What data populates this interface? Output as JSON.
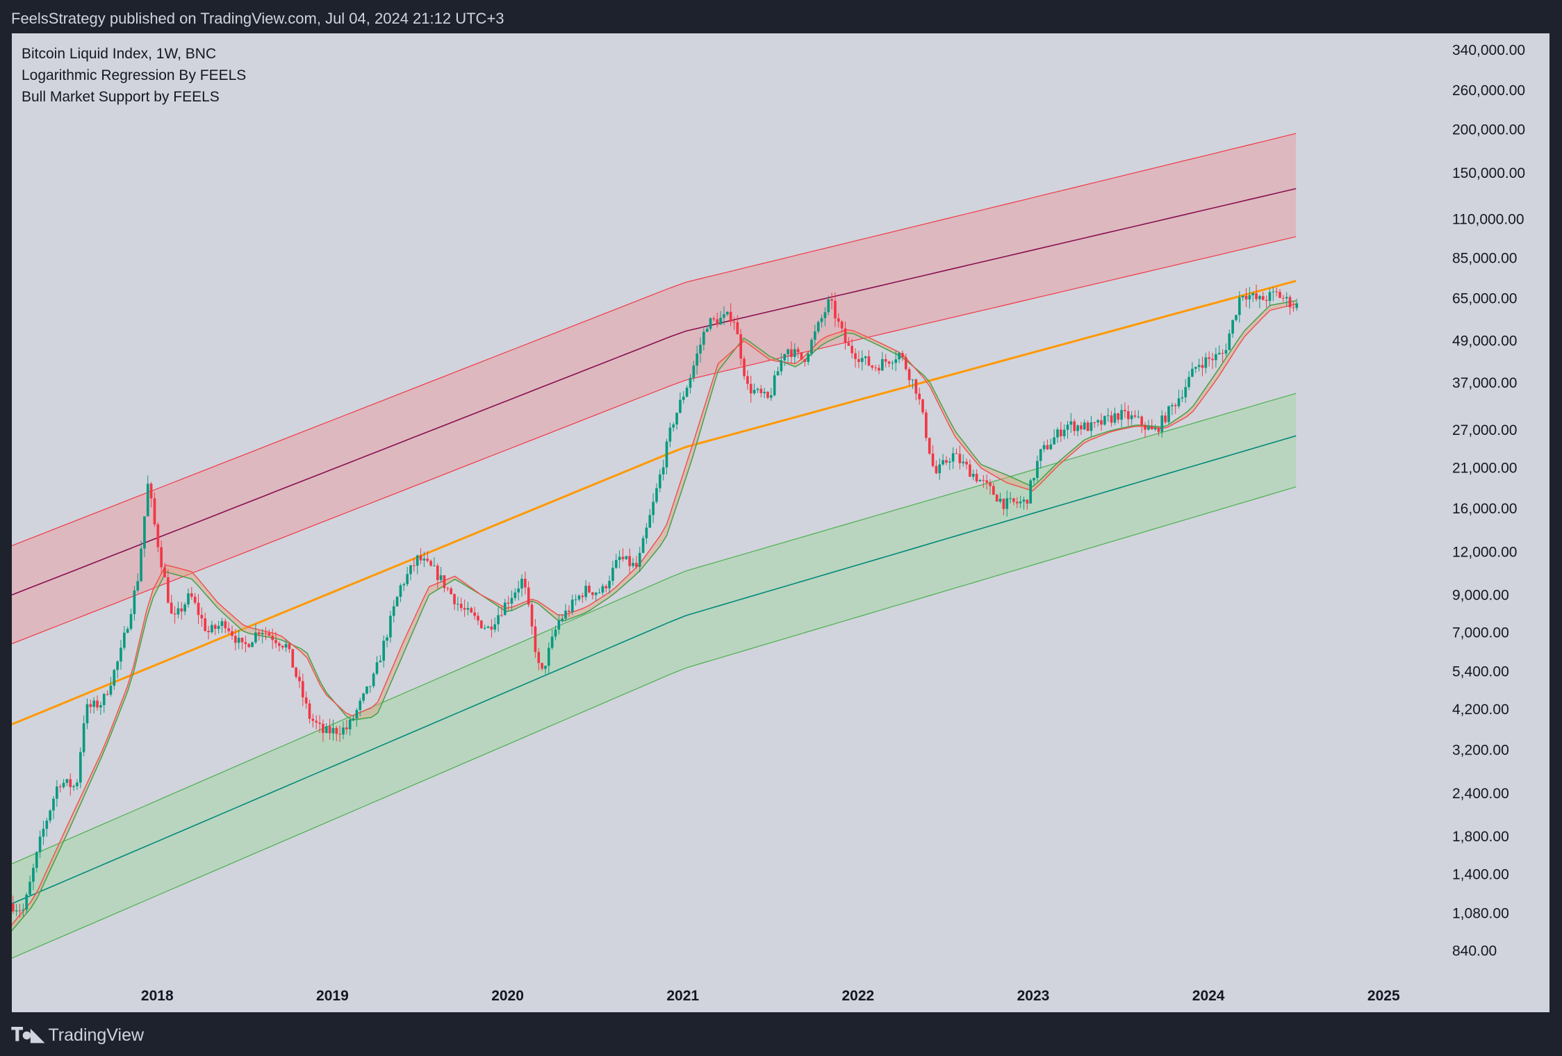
{
  "header": {
    "published_line": "FeelsStrategy published on TradingView.com, Jul 04, 2024 21:12 UTC+3"
  },
  "legend": [
    "Bitcoin Liquid Index, 1W, BNC",
    "Logarithmic Regression By FEELS",
    "Bull Market Support by FEELS"
  ],
  "footer": {
    "logo_icon": "tradingview-logo-icon",
    "brand": "TradingView"
  },
  "colors": {
    "background": "#1e222d",
    "plot_background": "#d1d4dc",
    "candle_up": "#089981",
    "candle_down": "#f23645",
    "upper_band_fill": "#e8a1a8",
    "upper_band_edge": "#f23645",
    "upper_mid_line": "#880e4f",
    "fair_value_line": "#ff9800",
    "lower_band_fill": "#a5d6a7",
    "lower_band_edge": "#4caf50",
    "lower_mid_line": "#00897b",
    "bms_sma": "#43a047",
    "bms_ema": "#ef5350"
  },
  "chart_data": {
    "type": "candlestick",
    "title": "Bitcoin Liquid Index, 1W, BNC",
    "scale": "logarithmic",
    "x_range": [
      2017.17,
      2025.34
    ],
    "y_range": [
      700,
      380000
    ],
    "x_ticks": [
      "2018",
      "2019",
      "2020",
      "2021",
      "2022",
      "2023",
      "2024",
      "2025"
    ],
    "y_ticks": [
      340000,
      260000,
      200000,
      150000,
      110000,
      85000,
      65000,
      49000,
      37000,
      27000,
      21000,
      16000,
      12000,
      9000,
      7000,
      5400,
      4200,
      3200,
      2400,
      1800,
      1400,
      1080,
      840
    ],
    "y_tick_labels": [
      "340,000.00",
      "260,000.00",
      "200,000.00",
      "150,000.00",
      "110,000.00",
      "85,000.00",
      "65,000.00",
      "49,000.00",
      "37,000.00",
      "27,000.00",
      "21,000.00",
      "16,000.00",
      "12,000.00",
      "9,000.00",
      "7,000.00",
      "5,400.00",
      "4,200.00",
      "3,200.00",
      "2,400.00",
      "1,800.00",
      "1,400.00",
      "1,080.00",
      "840.00"
    ],
    "price_path": [
      [
        2017.17,
        1150
      ],
      [
        2017.25,
        1100
      ],
      [
        2017.35,
        1800
      ],
      [
        2017.45,
        2600
      ],
      [
        2017.55,
        2500
      ],
      [
        2017.6,
        4200
      ],
      [
        2017.7,
        4400
      ],
      [
        2017.8,
        6000
      ],
      [
        2017.9,
        10000
      ],
      [
        2017.96,
        19000
      ],
      [
        2018.0,
        14000
      ],
      [
        2018.1,
        7500
      ],
      [
        2018.2,
        9000
      ],
      [
        2018.3,
        7000
      ],
      [
        2018.4,
        7500
      ],
      [
        2018.5,
        6300
      ],
      [
        2018.6,
        7200
      ],
      [
        2018.75,
        6400
      ],
      [
        2018.88,
        4000
      ],
      [
        2018.96,
        3600
      ],
      [
        2019.1,
        3700
      ],
      [
        2019.25,
        5200
      ],
      [
        2019.4,
        9500
      ],
      [
        2019.5,
        11500
      ],
      [
        2019.6,
        10500
      ],
      [
        2019.75,
        8200
      ],
      [
        2019.9,
        7200
      ],
      [
        2020.0,
        8500
      ],
      [
        2020.1,
        10000
      ],
      [
        2020.2,
        5200
      ],
      [
        2020.3,
        7500
      ],
      [
        2020.45,
        9300
      ],
      [
        2020.55,
        9200
      ],
      [
        2020.65,
        11500
      ],
      [
        2020.75,
        10800
      ],
      [
        2020.85,
        17000
      ],
      [
        2020.95,
        28000
      ],
      [
        2021.05,
        38000
      ],
      [
        2021.15,
        55000
      ],
      [
        2021.3,
        58000
      ],
      [
        2021.38,
        36000
      ],
      [
        2021.5,
        33000
      ],
      [
        2021.6,
        47000
      ],
      [
        2021.7,
        43000
      ],
      [
        2021.85,
        64000
      ],
      [
        2021.95,
        47000
      ],
      [
        2022.1,
        41000
      ],
      [
        2022.25,
        45000
      ],
      [
        2022.35,
        35000
      ],
      [
        2022.45,
        20000
      ],
      [
        2022.55,
        23000
      ],
      [
        2022.7,
        19500
      ],
      [
        2022.85,
        16500
      ],
      [
        2022.97,
        16700
      ],
      [
        2023.05,
        23000
      ],
      [
        2023.2,
        28000
      ],
      [
        2023.35,
        27500
      ],
      [
        2023.5,
        30000
      ],
      [
        2023.6,
        29000
      ],
      [
        2023.7,
        26500
      ],
      [
        2023.85,
        34000
      ],
      [
        2023.95,
        42000
      ],
      [
        2024.1,
        45000
      ],
      [
        2024.2,
        68000
      ],
      [
        2024.3,
        64000
      ],
      [
        2024.4,
        67000
      ],
      [
        2024.5,
        62000
      ]
    ],
    "regression": {
      "upper_band_top": [
        [
          2017.17,
          12500
        ],
        [
          2021.0,
          72000
        ],
        [
          2024.5,
          195000
        ]
      ],
      "upper_mid": [
        [
          2017.17,
          9000
        ],
        [
          2021.0,
          52000
        ],
        [
          2024.5,
          135000
        ]
      ],
      "upper_band_bottom": [
        [
          2017.17,
          6500
        ],
        [
          2021.0,
          37500
        ],
        [
          2024.5,
          98000
        ]
      ],
      "fair_value": [
        [
          2017.17,
          3800
        ],
        [
          2021.0,
          24000
        ],
        [
          2024.5,
          73000
        ]
      ],
      "lower_band_top": [
        [
          2017.17,
          1500
        ],
        [
          2021.0,
          10500
        ],
        [
          2024.5,
          34500
        ]
      ],
      "lower_mid": [
        [
          2017.17,
          1150
        ],
        [
          2021.0,
          7800
        ],
        [
          2024.5,
          26000
        ]
      ],
      "lower_band_bottom": [
        [
          2017.17,
          800
        ],
        [
          2021.0,
          5500
        ],
        [
          2024.5,
          18500
        ]
      ]
    },
    "bull_market_support": {
      "sma_20w": [
        [
          2017.17,
          960
        ],
        [
          2017.3,
          1150
        ],
        [
          2017.5,
          1900
        ],
        [
          2017.7,
          3200
        ],
        [
          2017.85,
          5000
        ],
        [
          2017.96,
          8500
        ],
        [
          2018.05,
          10500
        ],
        [
          2018.2,
          10000
        ],
        [
          2018.35,
          8200
        ],
        [
          2018.5,
          7000
        ],
        [
          2018.7,
          6700
        ],
        [
          2018.85,
          6200
        ],
        [
          2018.95,
          4800
        ],
        [
          2019.1,
          3900
        ],
        [
          2019.25,
          4000
        ],
        [
          2019.4,
          6000
        ],
        [
          2019.55,
          9000
        ],
        [
          2019.7,
          10000
        ],
        [
          2019.85,
          9000
        ],
        [
          2020.0,
          8000
        ],
        [
          2020.15,
          8700
        ],
        [
          2020.3,
          7500
        ],
        [
          2020.45,
          8000
        ],
        [
          2020.6,
          9000
        ],
        [
          2020.75,
          10500
        ],
        [
          2020.9,
          13000
        ],
        [
          2021.05,
          22000
        ],
        [
          2021.2,
          40000
        ],
        [
          2021.35,
          50000
        ],
        [
          2021.5,
          44000
        ],
        [
          2021.65,
          41000
        ],
        [
          2021.8,
          48000
        ],
        [
          2021.95,
          52000
        ],
        [
          2022.1,
          48000
        ],
        [
          2022.25,
          44000
        ],
        [
          2022.4,
          38000
        ],
        [
          2022.55,
          27000
        ],
        [
          2022.7,
          21500
        ],
        [
          2022.85,
          20000
        ],
        [
          2023.0,
          18500
        ],
        [
          2023.15,
          22000
        ],
        [
          2023.3,
          25500
        ],
        [
          2023.45,
          27000
        ],
        [
          2023.6,
          28000
        ],
        [
          2023.75,
          27500
        ],
        [
          2023.9,
          31000
        ],
        [
          2024.05,
          40000
        ],
        [
          2024.2,
          52000
        ],
        [
          2024.35,
          62000
        ],
        [
          2024.5,
          64000
        ]
      ],
      "ema_21w": [
        [
          2017.17,
          1000
        ],
        [
          2017.3,
          1200
        ],
        [
          2017.5,
          2000
        ],
        [
          2017.7,
          3300
        ],
        [
          2017.85,
          5200
        ],
        [
          2017.96,
          9000
        ],
        [
          2018.05,
          11000
        ],
        [
          2018.2,
          10500
        ],
        [
          2018.35,
          8500
        ],
        [
          2018.5,
          7300
        ],
        [
          2018.7,
          6900
        ],
        [
          2018.85,
          6000
        ],
        [
          2018.95,
          4700
        ],
        [
          2019.1,
          4000
        ],
        [
          2019.25,
          4300
        ],
        [
          2019.4,
          6500
        ],
        [
          2019.55,
          9500
        ],
        [
          2019.7,
          10200
        ],
        [
          2019.85,
          9000
        ],
        [
          2020.0,
          8200
        ],
        [
          2020.15,
          8800
        ],
        [
          2020.3,
          7800
        ],
        [
          2020.45,
          8300
        ],
        [
          2020.6,
          9300
        ],
        [
          2020.75,
          11000
        ],
        [
          2020.9,
          14000
        ],
        [
          2021.05,
          24000
        ],
        [
          2021.2,
          42000
        ],
        [
          2021.35,
          49000
        ],
        [
          2021.5,
          43000
        ],
        [
          2021.65,
          42000
        ],
        [
          2021.8,
          50000
        ],
        [
          2021.95,
          53000
        ],
        [
          2022.1,
          49000
        ],
        [
          2022.25,
          45000
        ],
        [
          2022.4,
          37000
        ],
        [
          2022.55,
          26000
        ],
        [
          2022.7,
          21000
        ],
        [
          2022.85,
          19000
        ],
        [
          2023.0,
          18000
        ],
        [
          2023.15,
          21500
        ],
        [
          2023.3,
          25000
        ],
        [
          2023.45,
          26800
        ],
        [
          2023.6,
          27800
        ],
        [
          2023.75,
          27200
        ],
        [
          2023.9,
          30000
        ],
        [
          2024.05,
          38000
        ],
        [
          2024.2,
          50000
        ],
        [
          2024.35,
          60000
        ],
        [
          2024.5,
          62500
        ]
      ]
    }
  }
}
